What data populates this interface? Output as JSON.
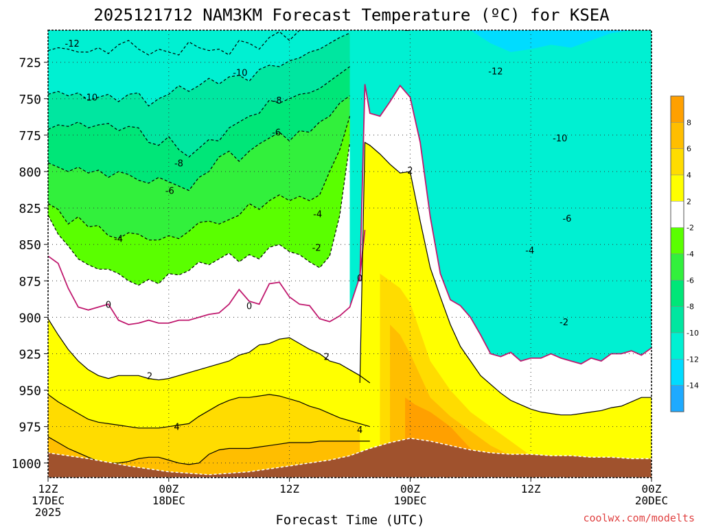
{
  "chart_data": {
    "type": "heatmap",
    "title": "2025121712 NAM3KM Forecast Temperature (ºC) for KSEA",
    "xlabel": "Forecast Time (UTC)",
    "ylabel": "Pressure (hPa)",
    "credit": "coolwx.com/modelts",
    "x_ticks": [
      {
        "hour": 0,
        "lines": [
          "12Z",
          "17DEC",
          "2025"
        ]
      },
      {
        "hour": 12,
        "lines": [
          "00Z",
          "18DEC"
        ]
      },
      {
        "hour": 24,
        "lines": [
          "12Z"
        ]
      },
      {
        "hour": 36,
        "lines": [
          "00Z",
          "19DEC"
        ]
      },
      {
        "hour": 48,
        "lines": [
          "12Z"
        ]
      },
      {
        "hour": 60,
        "lines": [
          "00Z",
          "20DEC"
        ]
      }
    ],
    "xlim": [
      0,
      60
    ],
    "y_ticks": [
      725,
      750,
      775,
      800,
      825,
      850,
      875,
      900,
      925,
      950,
      975,
      1000
    ],
    "ylim": [
      1010,
      703
    ],
    "colorbar": {
      "bounds": [
        -16,
        -14,
        -12,
        -10,
        -8,
        -6,
        -4,
        -2,
        2,
        4,
        6,
        8,
        10
      ],
      "labels": [
        "8",
        "6",
        "4",
        "2",
        "-2",
        "-4",
        "-6",
        "-8",
        "-10",
        "-12",
        "-14"
      ],
      "colors": [
        "#1eaaff",
        "#00dcff",
        "#00f0d2",
        "#00e6a0",
        "#00e678",
        "#32f03c",
        "#5aff00",
        "#ffffff",
        "#ffff00",
        "#ffdc00",
        "#ffbe00",
        "#ffa000"
      ]
    },
    "contour_labels": [
      {
        "text": "-12",
        "hour": 2.4,
        "p": 712
      },
      {
        "text": "-10",
        "hour": 4.2,
        "p": 749
      },
      {
        "text": "-10",
        "hour": 19.1,
        "p": 732
      },
      {
        "text": "-8",
        "hour": 22.8,
        "p": 751
      },
      {
        "text": "-8",
        "hour": 13.0,
        "p": 794
      },
      {
        "text": "-6",
        "hour": 22.7,
        "p": 773
      },
      {
        "text": "-6",
        "hour": 12.1,
        "p": 813
      },
      {
        "text": "-4",
        "hour": 7.0,
        "p": 846
      },
      {
        "text": "-4",
        "hour": 26.8,
        "p": 829
      },
      {
        "text": "-2",
        "hour": 26.7,
        "p": 852
      },
      {
        "text": "-2",
        "hour": 35.5,
        "p": 701
      },
      {
        "text": "-12",
        "hour": 44.5,
        "p": 731
      },
      {
        "text": "-10",
        "hour": 50.9,
        "p": 777
      },
      {
        "text": "-6",
        "hour": 51.6,
        "p": 832
      },
      {
        "text": "-4",
        "hour": 47.9,
        "p": 854
      },
      {
        "text": "-2",
        "hour": 51.3,
        "p": 903
      },
      {
        "text": "0",
        "hour": 6.0,
        "p": 891
      },
      {
        "text": "0",
        "hour": 20.0,
        "p": 892
      },
      {
        "text": "0",
        "hour": 31.0,
        "p": 873
      },
      {
        "text": "2",
        "hour": 10.1,
        "p": 940
      },
      {
        "text": "2",
        "hour": 27.7,
        "p": 927
      },
      {
        "text": "2",
        "hour": 36.0,
        "p": 799
      },
      {
        "text": "4",
        "hour": 12.8,
        "p": 975
      },
      {
        "text": "4",
        "hour": 31.0,
        "p": 977
      }
    ],
    "series": [
      {
        "name": "-12",
        "level": -12,
        "x": [
          0,
          1,
          2,
          3,
          4,
          5,
          6,
          7,
          8,
          9,
          10,
          11,
          12,
          13,
          14,
          15,
          16,
          17,
          18,
          19,
          20,
          21,
          22,
          23,
          24,
          25,
          26,
          27,
          28,
          29,
          30
        ],
        "p": [
          717,
          715,
          716,
          718,
          718,
          715,
          719,
          713,
          710,
          716,
          720,
          716,
          718,
          720,
          711,
          715,
          717,
          716,
          720,
          710,
          712,
          716,
          708,
          704,
          710,
          703,
          703,
          703,
          703,
          703,
          703
        ]
      },
      {
        "name": "-10",
        "level": -10,
        "x": [
          0,
          1,
          2,
          3,
          4,
          5,
          6,
          7,
          8,
          9,
          10,
          11,
          12,
          13,
          14,
          15,
          16,
          17,
          18,
          19,
          20,
          21,
          22,
          23,
          24,
          25,
          26,
          27,
          28,
          29,
          30
        ],
        "p": [
          747,
          745,
          748,
          746,
          751,
          749,
          747,
          752,
          747,
          746,
          755,
          750,
          747,
          741,
          745,
          741,
          736,
          740,
          735,
          734,
          738,
          730,
          727,
          728,
          724,
          722,
          718,
          716,
          712,
          708,
          705
        ]
      },
      {
        "name": "-8",
        "level": -8,
        "x": [
          0,
          1,
          2,
          3,
          4,
          5,
          6,
          7,
          8,
          9,
          10,
          11,
          12,
          13,
          14,
          15,
          16,
          17,
          18,
          19,
          20,
          21,
          22,
          23,
          24,
          25,
          26,
          27,
          28,
          29,
          30
        ],
        "p": [
          771,
          768,
          769,
          766,
          770,
          768,
          767,
          772,
          769,
          770,
          780,
          782,
          776,
          785,
          790,
          784,
          778,
          779,
          770,
          766,
          762,
          760,
          751,
          753,
          750,
          747,
          746,
          743,
          738,
          733,
          728
        ]
      },
      {
        "name": "-6",
        "level": -6,
        "x": [
          0,
          1,
          2,
          3,
          4,
          5,
          6,
          7,
          8,
          9,
          10,
          11,
          12,
          13,
          14,
          15,
          16,
          17,
          18,
          19,
          20,
          21,
          22,
          23,
          24,
          25,
          26,
          27,
          28,
          29,
          30
        ],
        "p": [
          794,
          797,
          800,
          797,
          801,
          799,
          804,
          800,
          802,
          806,
          808,
          804,
          807,
          810,
          813,
          804,
          800,
          790,
          786,
          793,
          786,
          781,
          777,
          773,
          779,
          772,
          773,
          766,
          762,
          753,
          748
        ]
      },
      {
        "name": "-4",
        "level": -4,
        "x": [
          0,
          1,
          2,
          3,
          4,
          5,
          6,
          7,
          8,
          9,
          10,
          11,
          12,
          13,
          14,
          15,
          16,
          17,
          18,
          19,
          20,
          21,
          22,
          23,
          24,
          25,
          26,
          27,
          28,
          29,
          30
        ],
        "p": [
          822,
          826,
          836,
          831,
          838,
          837,
          844,
          846,
          842,
          843,
          847,
          847,
          844,
          846,
          841,
          835,
          834,
          836,
          833,
          830,
          822,
          826,
          820,
          816,
          820,
          817,
          820,
          816,
          800,
          785,
          762
        ]
      },
      {
        "name": "-2",
        "level": -2,
        "x": [
          0,
          1,
          2,
          3,
          4,
          5,
          6,
          7,
          8,
          9,
          10,
          11,
          12,
          13,
          14,
          15,
          16,
          17,
          18,
          19,
          20,
          21,
          22,
          23,
          24,
          25,
          26,
          27,
          28,
          29,
          30
        ],
        "p": [
          830,
          843,
          851,
          860,
          864,
          867,
          867,
          870,
          875,
          878,
          874,
          877,
          870,
          871,
          868,
          862,
          864,
          860,
          856,
          862,
          857,
          860,
          852,
          850,
          855,
          857,
          862,
          866,
          858,
          830,
          780
        ]
      },
      {
        "name": "0",
        "level": 0,
        "x": [
          0,
          1,
          2,
          3,
          4,
          5,
          6,
          7,
          8,
          9,
          10,
          11,
          12,
          13,
          14,
          15,
          16,
          17,
          18,
          19,
          20,
          21,
          22,
          23,
          24,
          25,
          26,
          27,
          28,
          29,
          30,
          31,
          31.5
        ],
        "p": [
          858,
          863,
          880,
          893,
          895,
          893,
          891,
          902,
          905,
          904,
          902,
          904,
          904,
          902,
          902,
          900,
          898,
          897,
          891,
          881,
          889,
          891,
          877,
          876,
          886,
          891,
          892,
          901,
          903,
          899,
          893,
          872,
          840
        ]
      },
      {
        "name": "2",
        "level": 2,
        "x": [
          0,
          1,
          2,
          3,
          4,
          5,
          6,
          7,
          8,
          9,
          10,
          11,
          12,
          13,
          14,
          15,
          16,
          17,
          18,
          19,
          20,
          21,
          22,
          23,
          24,
          25,
          26,
          27,
          28,
          29,
          30,
          31,
          32
        ],
        "p": [
          901,
          912,
          922,
          930,
          936,
          940,
          942,
          940,
          940,
          940,
          942,
          943,
          942,
          940,
          938,
          936,
          934,
          932,
          930,
          926,
          924,
          919,
          918,
          915,
          914,
          918,
          922,
          925,
          930,
          932,
          936,
          940,
          945
        ]
      },
      {
        "name": "4",
        "level": 4,
        "x": [
          0,
          1,
          2,
          3,
          4,
          5,
          6,
          7,
          8,
          9,
          10,
          11,
          12,
          13,
          14,
          15,
          16,
          17,
          18,
          19,
          20,
          21,
          22,
          23,
          24,
          25,
          26,
          27,
          28,
          29,
          30,
          31,
          32
        ],
        "p": [
          953,
          958,
          962,
          966,
          970,
          972,
          973,
          974,
          975,
          976,
          976,
          976,
          975,
          974,
          973,
          968,
          964,
          960,
          957,
          955,
          955,
          954,
          953,
          954,
          956,
          958,
          961,
          963,
          966,
          969,
          971,
          973,
          975
        ]
      },
      {
        "name": "6",
        "level": 6,
        "x": [
          0,
          1,
          2,
          3,
          4,
          5,
          6,
          7,
          8,
          9,
          10,
          11,
          12,
          13,
          14,
          15,
          16,
          17,
          18,
          19,
          20,
          21,
          22,
          23,
          24,
          25,
          26,
          27,
          28,
          29,
          30,
          31,
          32
        ],
        "p": [
          982,
          986,
          990,
          993,
          996,
          999,
          1000,
          1000,
          999,
          997,
          996,
          996,
          998,
          1000,
          1001,
          1000,
          994,
          991,
          990,
          990,
          990,
          989,
          988,
          987,
          986,
          986,
          986,
          985,
          985,
          985,
          985,
          985,
          985
        ]
      },
      {
        "name": "warm-nose-2",
        "level": 2,
        "x": [
          31,
          31.5,
          32,
          33,
          34,
          35,
          36,
          37,
          38,
          39,
          40,
          41,
          42,
          43,
          44,
          45,
          46,
          47,
          48,
          49,
          50,
          51,
          52,
          53,
          54,
          55,
          56,
          57,
          58,
          59,
          60
        ],
        "p": [
          945,
          780,
          782,
          788,
          795,
          801,
          800,
          834,
          866,
          886,
          905,
          920,
          930,
          940,
          946,
          952,
          957,
          960,
          963,
          965,
          966,
          967,
          967,
          966,
          965,
          964,
          962,
          961,
          958,
          955,
          955
        ]
      },
      {
        "name": "warm-nose-0",
        "level": 0,
        "x": [
          31,
          31.5,
          32,
          33,
          34,
          35,
          36,
          37,
          38,
          39,
          40,
          41,
          42,
          43,
          44,
          45,
          46,
          47,
          48,
          49,
          50,
          51,
          52,
          53,
          54,
          55,
          56,
          57,
          58,
          59,
          60
        ],
        "p": [
          875,
          740,
          760,
          762,
          752,
          741,
          749,
          780,
          831,
          870,
          888,
          892,
          900,
          912,
          925,
          927,
          924,
          930,
          928,
          928,
          925,
          928,
          930,
          932,
          928,
          930,
          925,
          925,
          923,
          926,
          921
        ]
      }
    ],
    "terrain": {
      "x": [
        0,
        4,
        8,
        12,
        16,
        20,
        24,
        28,
        30,
        32,
        34,
        36,
        38,
        40,
        42,
        44,
        46,
        48,
        50,
        52,
        54,
        56,
        58,
        60
      ],
      "p": [
        993,
        997,
        1002,
        1006,
        1008,
        1006,
        1002,
        998,
        995,
        990,
        986,
        983,
        985,
        988,
        991,
        993,
        994,
        994,
        995,
        995,
        996,
        996,
        997,
        997
      ]
    }
  }
}
